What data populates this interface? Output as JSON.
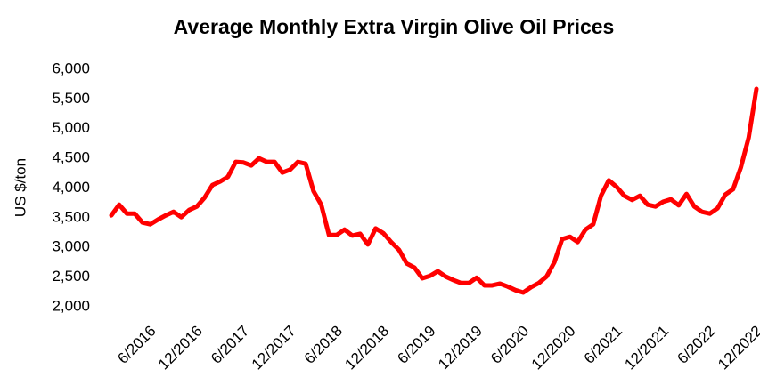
{
  "chart_data": {
    "type": "line",
    "title": "Average Monthly Extra Virgin Olive Oil Prices",
    "y_label": "US $/ton",
    "categories": [
      null,
      null,
      null,
      null,
      null,
      "6/2016",
      null,
      null,
      null,
      null,
      null,
      "12/2016",
      null,
      null,
      null,
      null,
      null,
      "6/2017",
      null,
      null,
      null,
      null,
      null,
      "12/2017",
      null,
      null,
      null,
      null,
      null,
      "6/2018",
      null,
      null,
      null,
      null,
      null,
      "12/2018",
      null,
      null,
      null,
      null,
      null,
      "6/2019",
      null,
      null,
      null,
      null,
      null,
      "12/2019",
      null,
      null,
      null,
      null,
      null,
      "6/2020",
      null,
      null,
      null,
      null,
      null,
      "12/2020",
      null,
      null,
      null,
      null,
      null,
      "6/2021",
      null,
      null,
      null,
      null,
      null,
      "12/2021",
      null,
      null,
      null,
      null,
      null,
      "6/2022",
      null,
      null,
      null,
      null,
      null,
      "12/2022"
    ],
    "values": [
      3540,
      3720,
      3570,
      3570,
      3420,
      3390,
      3470,
      3540,
      3600,
      3510,
      3630,
      3690,
      3840,
      4050,
      4110,
      4190,
      4440,
      4430,
      4380,
      4500,
      4440,
      4440,
      4260,
      4310,
      4440,
      4410,
      3950,
      3720,
      3210,
      3210,
      3300,
      3200,
      3230,
      3050,
      3320,
      3240,
      3090,
      2960,
      2730,
      2660,
      2480,
      2520,
      2600,
      2510,
      2450,
      2400,
      2400,
      2490,
      2360,
      2360,
      2390,
      2340,
      2280,
      2240,
      2330,
      2400,
      2510,
      2750,
      3140,
      3180,
      3090,
      3300,
      3390,
      3870,
      4130,
      4020,
      3870,
      3800,
      3870,
      3720,
      3690,
      3770,
      3810,
      3710,
      3900,
      3690,
      3600,
      3570,
      3660,
      3890,
      3980,
      4350,
      4850,
      5670
    ],
    "color": "#ff0000",
    "ylim": [
      2000,
      6000
    ],
    "yticks": [
      {
        "value": 2000,
        "label": "2,000"
      },
      {
        "value": 2500,
        "label": "2,500"
      },
      {
        "value": 3000,
        "label": "3,000"
      },
      {
        "value": 3500,
        "label": "3,500"
      },
      {
        "value": 4000,
        "label": "4,000"
      },
      {
        "value": 4500,
        "label": "4,500"
      },
      {
        "value": 5000,
        "label": "5,000"
      },
      {
        "value": 5500,
        "label": "5,500"
      },
      {
        "value": 6000,
        "label": "6,000"
      }
    ],
    "grid": false
  }
}
